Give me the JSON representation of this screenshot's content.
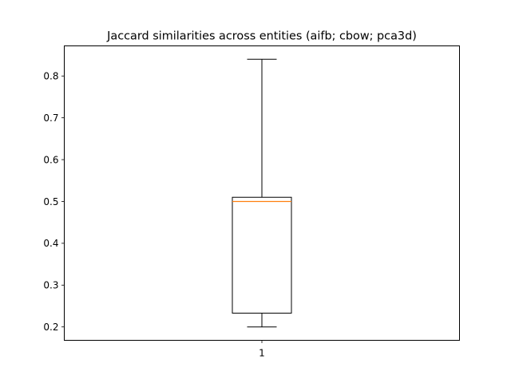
{
  "chart_data": {
    "type": "box",
    "title": "Jaccard similarities across entities (aifb; cbow; pca3d)",
    "xlabel": "",
    "ylabel": "",
    "categories": [
      "1"
    ],
    "boxes": [
      {
        "category": "1",
        "whisker_low": 0.2,
        "q1": 0.233,
        "median": 0.5,
        "q3": 0.51,
        "whisker_high": 0.84
      }
    ],
    "ylim": [
      0.168,
      0.872
    ],
    "yticks": [
      0.2,
      0.3,
      0.4,
      0.5,
      0.6,
      0.7,
      0.8
    ],
    "ytick_labels": [
      "0.2",
      "0.3",
      "0.4",
      "0.5",
      "0.6",
      "0.7",
      "0.8"
    ],
    "grid": false,
    "colors": {
      "box": "#000000",
      "median": "#ff7f0e"
    }
  }
}
